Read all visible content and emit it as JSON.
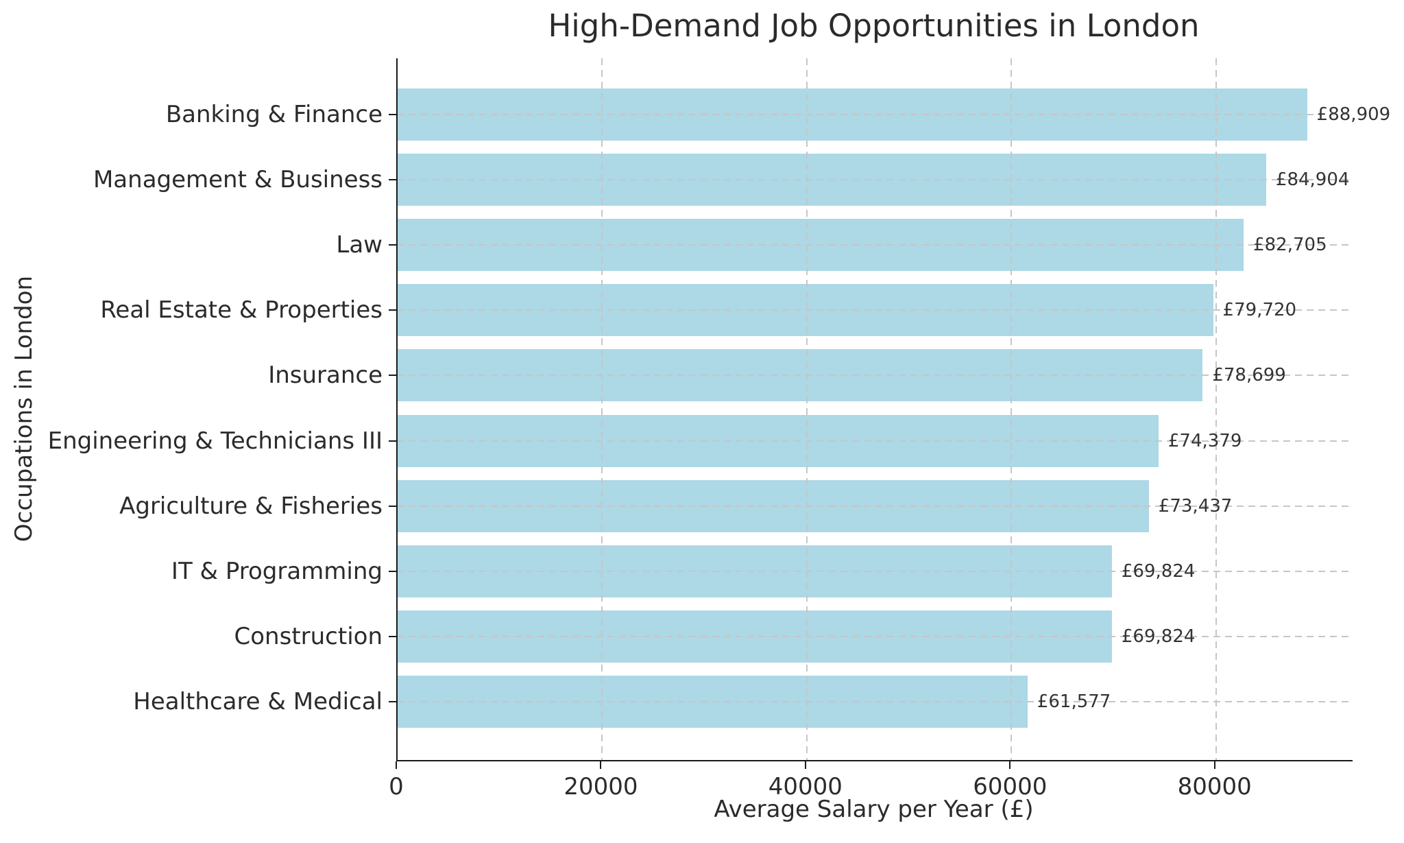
{
  "chart_data": {
    "type": "bar",
    "orientation": "horizontal",
    "title": "High-Demand Job Opportunities in London",
    "xlabel": "Average Salary per Year (£)",
    "ylabel": "Occupations in London",
    "categories": [
      "Banking & Finance",
      "Management & Business",
      "Law",
      "Real Estate & Properties",
      "Insurance",
      "Engineering & Technicians III",
      "Agriculture & Fisheries",
      "IT & Programming",
      "Construction",
      "Healthcare & Medical"
    ],
    "values": [
      88909,
      84904,
      82705,
      79720,
      78699,
      74379,
      73437,
      69824,
      69824,
      61577
    ],
    "value_labels": [
      "£88,909",
      "£84,904",
      "£82,705",
      "£79,720",
      "£78,699",
      "£74,379",
      "£73,437",
      "£69,824",
      "£69,824",
      "£61,577"
    ],
    "x_ticks": [
      0,
      20000,
      40000,
      60000,
      80000
    ],
    "x_tick_labels": [
      "0",
      "20000",
      "40000",
      "60000",
      "80000"
    ],
    "xlim": [
      0,
      93354
    ],
    "grid": "dashed, both axes",
    "legend": "none",
    "bar_color": "#add8e6",
    "background_color": "#ffffff",
    "text_color": "#2b2b2b",
    "grid_color": "#c6c6c6"
  }
}
